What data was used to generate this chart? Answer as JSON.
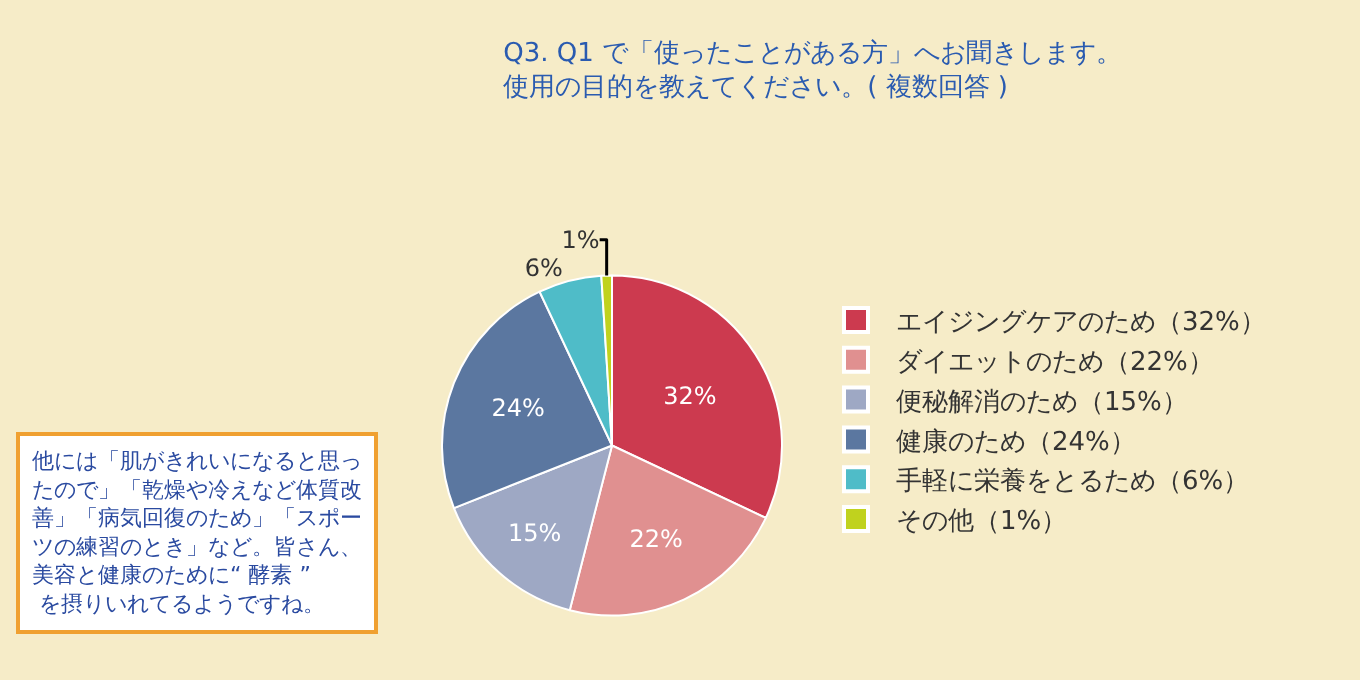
{
  "chart_data": {
    "type": "pie",
    "title": "Q3. Q1 で「使ったことがある方」へお聞きします。",
    "subtitle": "使用の目的を教えてください。( 複数回答 )",
    "categories": [
      "エイジングケアのため（32%）",
      "ダイエットのため（22%）",
      "便秘解消のため（15%）",
      "健康のため（24%）",
      "手軽に栄養をとるため（6%）",
      "その他（1%）"
    ],
    "values": [
      32,
      22,
      15,
      24,
      6,
      1
    ],
    "colors": [
      "#cc3a4f",
      "#e09090",
      "#9ea8c4",
      "#5b77a0",
      "#4fbcc8",
      "#c0d21e"
    ],
    "value_labels": [
      "32%",
      "22%",
      "15%",
      "24%",
      "6%",
      "1%"
    ],
    "legend": "right",
    "annotations": [
      "他には「肌がきれいになると思ったので」「乾燥や冷えなど体質改善」「病気回復のため」「スポーツの練習のとき」など。皆さん、美容と健康のために“ 酵素 ” を摂りいれてるようですね。"
    ]
  }
}
